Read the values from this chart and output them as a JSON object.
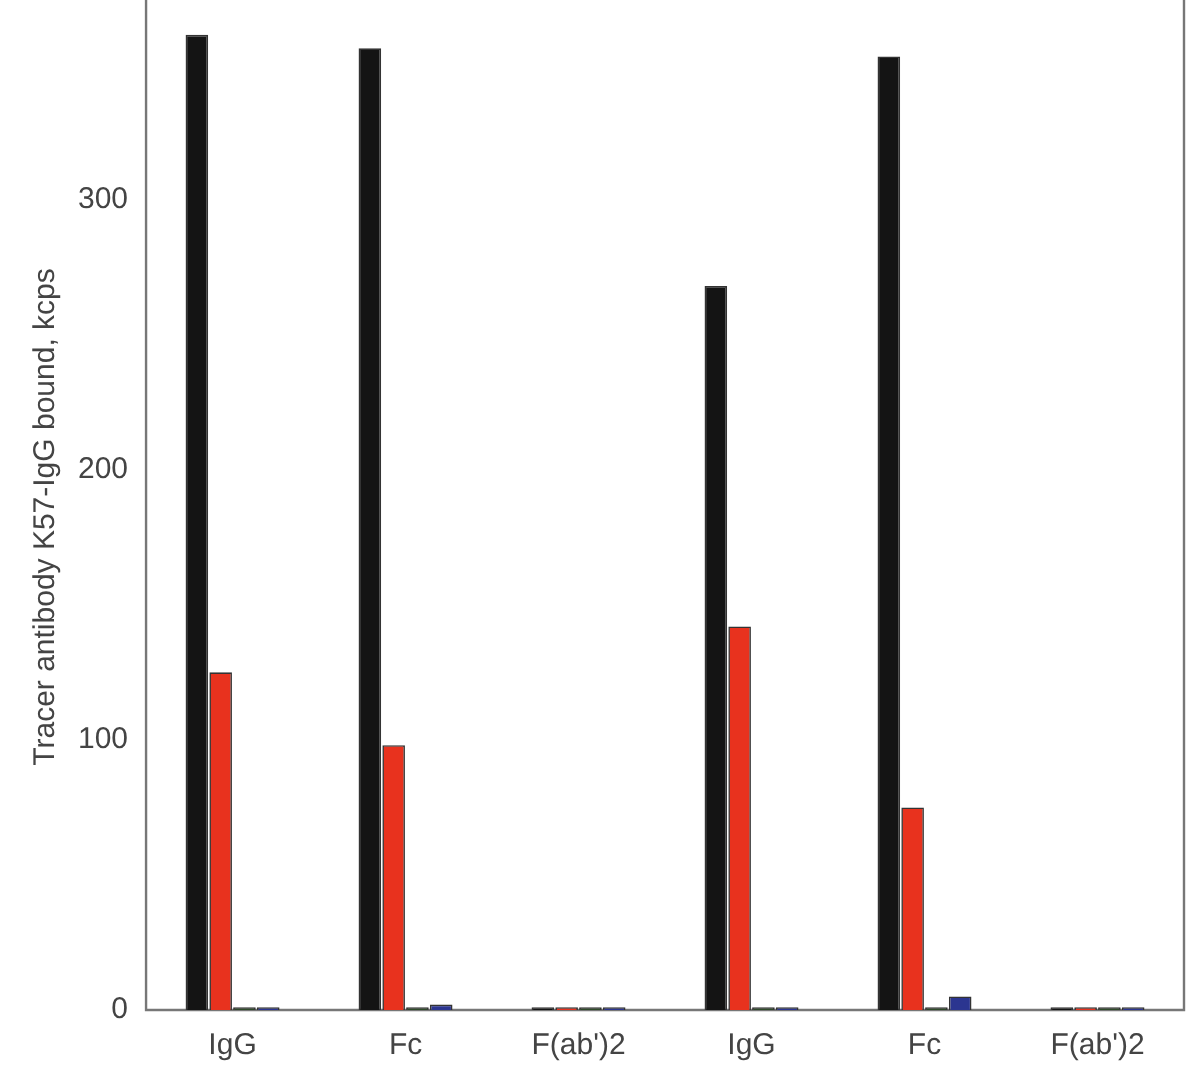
{
  "chart_data": {
    "type": "bar",
    "ylabel": "Tracer antibody K57-IgG bound, kcps",
    "categories": [
      "IgG",
      "Fc",
      "F(ab')2",
      "IgG",
      "Fc",
      "F(ab')2"
    ],
    "series": [
      {
        "color": "#141414",
        "values": [
          361,
          356,
          1,
          268,
          353,
          1
        ]
      },
      {
        "color": "#e8321e",
        "values": [
          125,
          98,
          1,
          142,
          75,
          1
        ]
      },
      {
        "color": "#2f4a2a",
        "values": [
          1,
          1,
          1,
          1,
          1,
          1
        ]
      },
      {
        "color": "#2b3590",
        "values": [
          1,
          2,
          1,
          1,
          5,
          1
        ]
      }
    ],
    "ylim": [
      0,
      365
    ],
    "yticks": [
      0,
      100,
      200,
      300
    ],
    "grid": false,
    "legend": false
  }
}
